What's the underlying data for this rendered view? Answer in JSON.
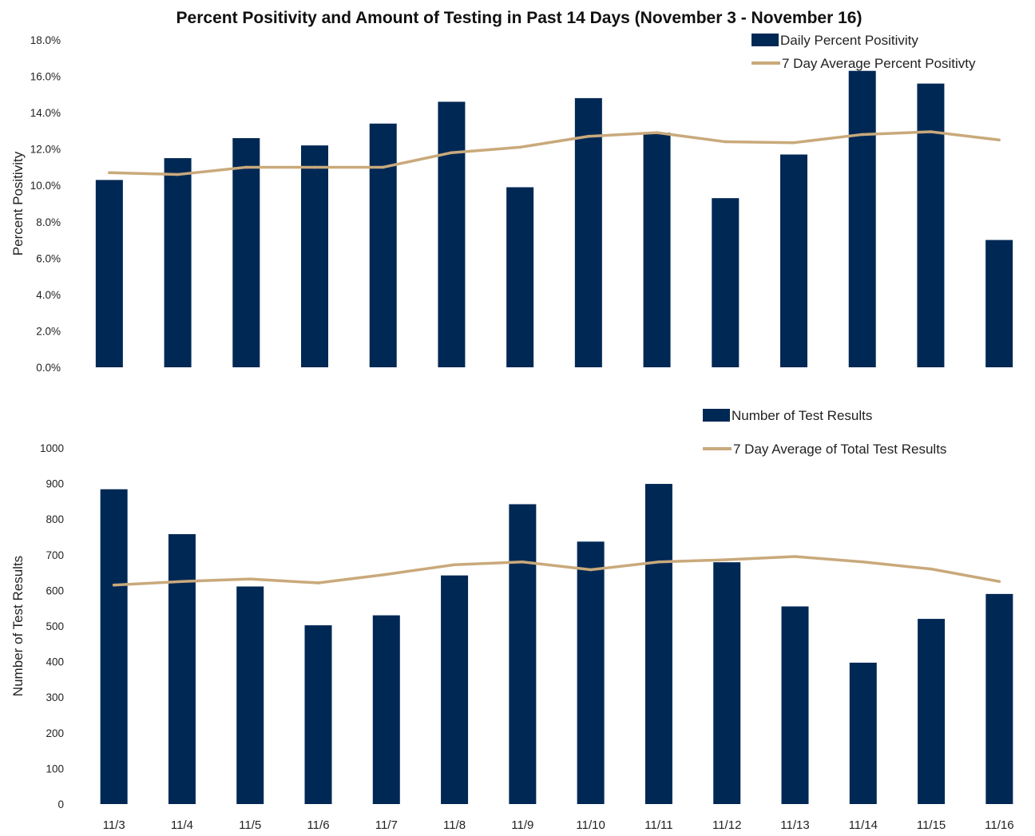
{
  "title": "Percent Positivity and Amount of Testing in Past 14 Days (November 3 - November 16)",
  "colors": {
    "bar": "#002855",
    "line": "#C9A97B"
  },
  "chart_data": [
    {
      "type": "bar",
      "categories": [
        "11/3",
        "11/4",
        "11/5",
        "11/6",
        "11/7",
        "11/8",
        "11/9",
        "11/10",
        "11/11",
        "11/12",
        "11/13",
        "11/14",
        "11/15",
        "11/16"
      ],
      "xlabel": "",
      "ylabel": "Percent Positivity",
      "ylim": [
        0,
        18
      ],
      "yticks": [
        "0.0%",
        "2.0%",
        "4.0%",
        "6.0%",
        "8.0%",
        "10.0%",
        "12.0%",
        "14.0%",
        "16.0%",
        "18.0%"
      ],
      "grid": false,
      "legend_position": "top-right",
      "series": [
        {
          "name": "Daily Percent Positivity",
          "type": "bar",
          "values": [
            10.3,
            11.5,
            12.6,
            12.2,
            13.4,
            14.6,
            9.9,
            14.8,
            12.9,
            9.3,
            11.7,
            16.3,
            15.6,
            7.0
          ]
        },
        {
          "name": "7 Day Average Percent Positivty",
          "type": "line",
          "values": [
            10.7,
            10.6,
            11.0,
            11.0,
            11.0,
            11.8,
            12.1,
            12.7,
            12.9,
            12.4,
            12.35,
            12.8,
            12.95,
            12.5
          ]
        }
      ]
    },
    {
      "type": "bar",
      "categories": [
        "11/3",
        "11/4",
        "11/5",
        "11/6",
        "11/7",
        "11/8",
        "11/9",
        "11/10",
        "11/11",
        "11/12",
        "11/13",
        "11/14",
        "11/15",
        "11/16"
      ],
      "xlabel": "",
      "ylabel": "Number of Test Results",
      "ylim": [
        0,
        1000
      ],
      "yticks": [
        "0",
        "100",
        "200",
        "300",
        "400",
        "500",
        "600",
        "700",
        "800",
        "900",
        "1000"
      ],
      "grid": false,
      "legend_position": "top-right",
      "series": [
        {
          "name": "Number of Test Results",
          "type": "bar",
          "values": [
            884,
            758,
            611,
            502,
            530,
            642,
            842,
            737,
            899,
            679,
            555,
            397,
            520,
            590
          ]
        },
        {
          "name": "7 Day Average of Total Test Results",
          "type": "line",
          "values": [
            615,
            625,
            632,
            621,
            645,
            672,
            680,
            658,
            680,
            686,
            695,
            680,
            660,
            625
          ]
        }
      ]
    }
  ]
}
